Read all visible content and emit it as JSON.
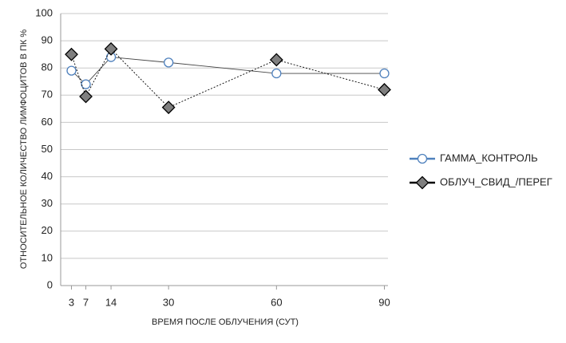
{
  "chart_data": {
    "type": "line",
    "y_label": "ОТНОСИТЕЛЬНОЕ КОЛИЧЕСТВО ЛИМФОЦИТОВ В ПК %",
    "x_label": "ВРЕМЯ ПОСЛЕ ОБЛУЧЕНИЯ (СУТ)",
    "x": [
      3,
      7,
      14,
      30,
      60,
      90
    ],
    "xlim": [
      0,
      91
    ],
    "xticks": [
      3,
      7,
      14,
      30,
      60,
      90
    ],
    "ylim": [
      0,
      100
    ],
    "yticks": [
      0,
      10,
      20,
      30,
      40,
      50,
      60,
      70,
      80,
      90,
      100
    ],
    "grid": true,
    "legend": "right",
    "series": [
      {
        "name": "ГАММА_КОНТРОЛЬ",
        "color": "#4f81bd",
        "marker": "circle",
        "line_style": "solid",
        "values": [
          79,
          74,
          84,
          82,
          78,
          78
        ]
      },
      {
        "name": "ОБЛУЧ_СВИД_/ПЕРЕГ",
        "color": "#000000",
        "marker": "diamond",
        "line_style": "dotted",
        "values": [
          85,
          69.5,
          87,
          65.5,
          83,
          72
        ]
      }
    ]
  }
}
